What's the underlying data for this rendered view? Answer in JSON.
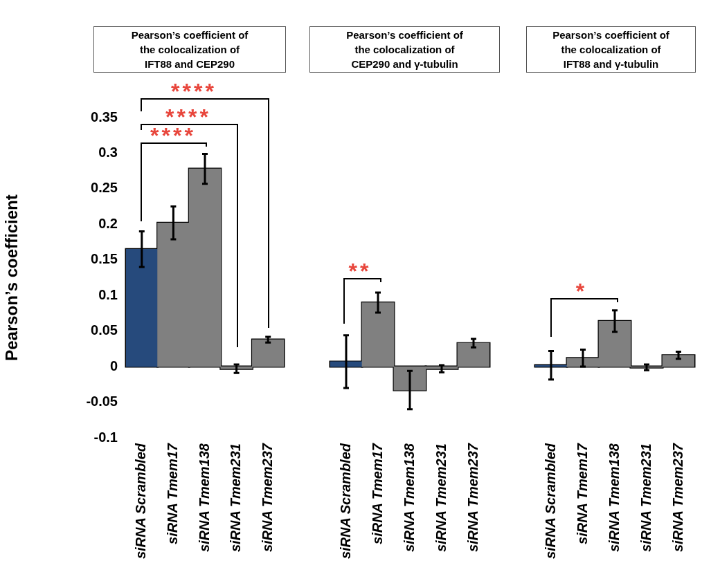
{
  "chart_data": [
    {
      "type": "bar",
      "title": "Pearson’s coefficient of the colocalization of IFT88 and CEP290",
      "ylabel": "Pearson’s coefficient",
      "categories": [
        "siRNA Scrambled",
        "siRNA Tmem17",
        "siRNA Tmem138",
        "siRNA Tmem231",
        "siRNA Tmem237"
      ],
      "values": [
        0.165,
        0.202,
        0.278,
        -0.003,
        0.038
      ],
      "errors": [
        0.025,
        0.023,
        0.021,
        0.006,
        0.004
      ],
      "colors": [
        "#264a7c",
        "#808080",
        "#808080",
        "#808080",
        "#808080"
      ],
      "ylim": [
        -0.1,
        0.35
      ],
      "yticks": [
        -0.1,
        -0.05,
        0,
        0.05,
        0.1,
        0.15,
        0.2,
        0.25,
        0.3,
        0.35
      ],
      "grid": false,
      "annotations": [
        "****",
        "****",
        "****"
      ]
    },
    {
      "type": "bar",
      "title": "Pearson’s coefficient of the colocalization of CEP290 and γ-tubulin",
      "categories": [
        "siRNA Scrambled",
        "siRNA Tmem17",
        "siRNA Tmem138",
        "siRNA Tmem231",
        "siRNA Tmem237"
      ],
      "values": [
        0.007,
        0.09,
        -0.033,
        -0.003,
        0.033
      ],
      "errors": [
        0.037,
        0.014,
        0.027,
        0.005,
        0.006
      ],
      "colors": [
        "#264a7c",
        "#808080",
        "#808080",
        "#808080",
        "#808080"
      ],
      "ylim": [
        -0.1,
        0.35
      ],
      "yticks": [
        -0.1,
        -0.05,
        0,
        0.05,
        0.1,
        0.15,
        0.2,
        0.25,
        0.3,
        0.35
      ],
      "grid": false,
      "tick_labels": "x",
      "annotations": [
        "**"
      ]
    },
    {
      "type": "bar",
      "title": "Pearson’s coefficient of the colocalization of IFT88 and γ-tubulin",
      "categories": [
        "siRNA Scrambled",
        "siRNA Tmem17",
        "siRNA Tmem138",
        "siRNA Tmem231",
        "siRNA Tmem237"
      ],
      "values": [
        0.002,
        0.012,
        0.064,
        -0.001,
        0.016
      ],
      "errors": [
        0.02,
        0.012,
        0.015,
        0.004,
        0.005
      ],
      "colors": [
        "#264a7c",
        "#808080",
        "#808080",
        "#808080",
        "#808080"
      ],
      "ylim": [
        -0.1,
        0.35
      ],
      "yticks": [
        -0.1,
        -0.05,
        0,
        0.05,
        0.1,
        0.15,
        0.2,
        0.25,
        0.3,
        0.35
      ],
      "grid": false,
      "tick_labels": "x",
      "annotations": [
        "*"
      ]
    }
  ]
}
